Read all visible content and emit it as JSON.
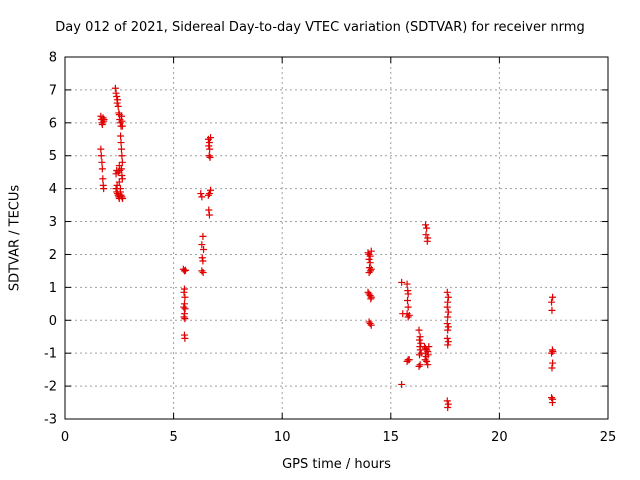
{
  "chart_data": {
    "type": "scatter",
    "title": "Day 012 of 2021, Sidereal Day-to-day VTEC variation (SDTVAR) for receiver nrmg",
    "xlabel": "GPS time / hours",
    "ylabel": "SDTVAR / TECUs",
    "xlim": [
      0,
      25
    ],
    "ylim": [
      -3,
      8
    ],
    "xticks": [
      0,
      5,
      10,
      15,
      20,
      25
    ],
    "yticks": [
      -3,
      -2,
      -1,
      0,
      1,
      2,
      3,
      4,
      5,
      6,
      7,
      8
    ],
    "grid": true,
    "marker": "+",
    "color": "#e00000",
    "series": [
      {
        "name": "nrmg",
        "points": [
          [
            1.65,
            6.2
          ],
          [
            1.68,
            6.1
          ],
          [
            1.7,
            6.0
          ],
          [
            1.72,
            5.95
          ],
          [
            1.75,
            6.15
          ],
          [
            1.78,
            6.05
          ],
          [
            1.8,
            6.1
          ],
          [
            1.65,
            5.2
          ],
          [
            1.67,
            5.0
          ],
          [
            1.7,
            4.8
          ],
          [
            1.72,
            4.6
          ],
          [
            1.74,
            4.3
          ],
          [
            1.76,
            4.1
          ],
          [
            1.78,
            4.0
          ],
          [
            2.32,
            7.05
          ],
          [
            2.35,
            6.9
          ],
          [
            2.38,
            6.8
          ],
          [
            2.4,
            6.6
          ],
          [
            2.42,
            6.7
          ],
          [
            2.45,
            6.5
          ],
          [
            2.48,
            6.3
          ],
          [
            2.5,
            6.25
          ],
          [
            2.52,
            6.1
          ],
          [
            2.55,
            6.0
          ],
          [
            2.58,
            5.9
          ],
          [
            2.6,
            6.2
          ],
          [
            2.62,
            6.05
          ],
          [
            2.64,
            5.9
          ],
          [
            2.56,
            5.6
          ],
          [
            2.58,
            5.4
          ],
          [
            2.6,
            5.2
          ],
          [
            2.62,
            5.0
          ],
          [
            2.64,
            4.8
          ],
          [
            2.5,
            4.7
          ],
          [
            2.52,
            4.55
          ],
          [
            2.45,
            4.5
          ],
          [
            2.38,
            4.55
          ],
          [
            2.35,
            4.45
          ],
          [
            2.6,
            4.6
          ],
          [
            2.62,
            4.4
          ],
          [
            2.64,
            4.3
          ],
          [
            2.5,
            4.2
          ],
          [
            2.35,
            4.0
          ],
          [
            2.38,
            3.9
          ],
          [
            2.42,
            3.85
          ],
          [
            2.45,
            3.8
          ],
          [
            2.48,
            3.75
          ],
          [
            2.5,
            3.7
          ],
          [
            2.55,
            3.9
          ],
          [
            2.58,
            3.8
          ],
          [
            2.62,
            3.75
          ],
          [
            2.65,
            3.7
          ],
          [
            2.4,
            4.1
          ],
          [
            2.55,
            4.0
          ],
          [
            5.45,
            1.55
          ],
          [
            5.5,
            1.5
          ],
          [
            5.55,
            1.52
          ],
          [
            5.5,
            0.95
          ],
          [
            5.48,
            0.85
          ],
          [
            5.52,
            0.7
          ],
          [
            5.5,
            0.5
          ],
          [
            5.47,
            0.4
          ],
          [
            5.53,
            0.35
          ],
          [
            5.5,
            0.2
          ],
          [
            5.48,
            0.1
          ],
          [
            5.52,
            0.05
          ],
          [
            5.5,
            -0.45
          ],
          [
            5.52,
            -0.55
          ],
          [
            6.25,
            3.85
          ],
          [
            6.3,
            3.75
          ],
          [
            6.35,
            2.55
          ],
          [
            6.3,
            2.3
          ],
          [
            6.38,
            2.15
          ],
          [
            6.32,
            1.9
          ],
          [
            6.35,
            1.8
          ],
          [
            6.3,
            1.5
          ],
          [
            6.36,
            1.45
          ],
          [
            6.6,
            3.8
          ],
          [
            6.65,
            3.85
          ],
          [
            6.7,
            3.95
          ],
          [
            6.62,
            3.35
          ],
          [
            6.65,
            3.2
          ],
          [
            6.6,
            5.5
          ],
          [
            6.65,
            5.4
          ],
          [
            6.7,
            5.55
          ],
          [
            6.62,
            5.3
          ],
          [
            6.66,
            5.2
          ],
          [
            6.64,
            5.0
          ],
          [
            6.68,
            4.95
          ],
          [
            13.95,
            2.05
          ],
          [
            14.0,
            2.0
          ],
          [
            14.05,
            1.95
          ],
          [
            14.1,
            2.1
          ],
          [
            14.0,
            1.85
          ],
          [
            14.05,
            1.75
          ],
          [
            14.02,
            1.6
          ],
          [
            14.06,
            1.5
          ],
          [
            14.0,
            1.45
          ],
          [
            14.1,
            1.55
          ],
          [
            13.95,
            0.85
          ],
          [
            14.0,
            0.8
          ],
          [
            14.05,
            0.75
          ],
          [
            14.1,
            0.7
          ],
          [
            14.08,
            0.65
          ],
          [
            14.0,
            -0.05
          ],
          [
            14.05,
            -0.1
          ],
          [
            14.1,
            -0.15
          ],
          [
            15.5,
            1.15
          ],
          [
            15.75,
            1.1
          ],
          [
            15.78,
            0.9
          ],
          [
            15.8,
            0.8
          ],
          [
            15.77,
            0.6
          ],
          [
            15.8,
            0.4
          ],
          [
            15.55,
            0.2
          ],
          [
            15.75,
            0.2
          ],
          [
            15.8,
            0.1
          ],
          [
            15.85,
            0.15
          ],
          [
            15.8,
            -1.2
          ],
          [
            15.75,
            -1.25
          ],
          [
            15.85,
            -1.2
          ],
          [
            15.5,
            -1.95
          ],
          [
            16.3,
            -0.3
          ],
          [
            16.35,
            -0.5
          ],
          [
            16.32,
            -0.6
          ],
          [
            16.38,
            -0.7
          ],
          [
            16.34,
            -0.8
          ],
          [
            16.36,
            -0.9
          ],
          [
            16.4,
            -1.0
          ],
          [
            16.32,
            -1.05
          ],
          [
            16.3,
            -1.4
          ],
          [
            16.35,
            -1.35
          ],
          [
            16.6,
            2.9
          ],
          [
            16.65,
            2.8
          ],
          [
            16.62,
            2.6
          ],
          [
            16.7,
            2.5
          ],
          [
            16.68,
            2.4
          ],
          [
            16.55,
            -0.8
          ],
          [
            16.6,
            -0.85
          ],
          [
            16.65,
            -0.9
          ],
          [
            16.7,
            -0.95
          ],
          [
            16.6,
            -1.0
          ],
          [
            16.62,
            -1.1
          ],
          [
            16.58,
            -1.2
          ],
          [
            16.65,
            -1.25
          ],
          [
            16.7,
            -1.35
          ],
          [
            16.75,
            -0.8
          ],
          [
            16.72,
            -1.05
          ],
          [
            17.6,
            0.85
          ],
          [
            17.65,
            0.7
          ],
          [
            17.62,
            0.55
          ],
          [
            17.6,
            0.4
          ],
          [
            17.65,
            0.25
          ],
          [
            17.62,
            0.1
          ],
          [
            17.6,
            -0.1
          ],
          [
            17.65,
            -0.2
          ],
          [
            17.62,
            -0.3
          ],
          [
            17.6,
            -0.55
          ],
          [
            17.65,
            -0.65
          ],
          [
            17.62,
            -0.75
          ],
          [
            17.6,
            -2.45
          ],
          [
            17.65,
            -2.55
          ],
          [
            17.62,
            -2.65
          ],
          [
            22.4,
            0.55
          ],
          [
            22.45,
            0.7
          ],
          [
            22.42,
            0.3
          ],
          [
            22.44,
            -0.9
          ],
          [
            22.46,
            -0.95
          ],
          [
            22.4,
            -1.0
          ],
          [
            22.45,
            -1.3
          ],
          [
            22.42,
            -1.45
          ],
          [
            22.4,
            -2.35
          ],
          [
            22.45,
            -2.4
          ],
          [
            22.44,
            -2.5
          ]
        ]
      }
    ]
  }
}
